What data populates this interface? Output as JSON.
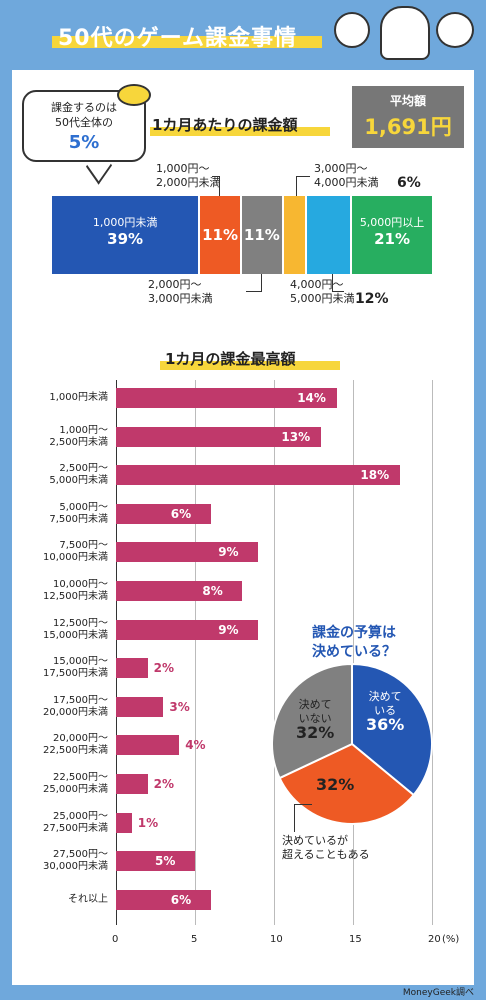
{
  "header": {
    "title": "50代のゲーム課金事情"
  },
  "bubble": {
    "text_line1": "課金するのは",
    "text_line2": "50代全体の",
    "percent": "5%"
  },
  "average": {
    "label": "平均額",
    "value": "1,691円"
  },
  "monthly_title": "1カ月あたりの課金額",
  "monthly_breakdown": [
    {
      "label": "1,000円未満",
      "percent": "39%",
      "value": 39,
      "color": "#2457b3"
    },
    {
      "label": "1,000円～\n2,000円未満",
      "percent": "11%",
      "value": 11,
      "color": "#ee5a24"
    },
    {
      "label": "2,000円～\n3,000円未満",
      "percent": "11%",
      "value": 11,
      "color": "#808080"
    },
    {
      "label": "3,000円～\n4,000円未満",
      "percent": "6%",
      "value": 6,
      "color": "#f7b731"
    },
    {
      "label": "4,000円～\n5,000円未満",
      "percent": "12%",
      "value": 12,
      "color": "#26a9e0"
    },
    {
      "label": "5,000円以上",
      "percent": "21%",
      "value": 21,
      "color": "#27ae60"
    }
  ],
  "max_title": "1カ月の課金最高額",
  "chart_data": [
    {
      "type": "bar",
      "orientation": "horizontal",
      "categories": [
        "1,000円未満",
        "1,000円～\n2,500円未満",
        "2,500円～\n5,000円未満",
        "5,000円～\n7,500円未満",
        "7,500円～\n10,000円未満",
        "10,000円～\n12,500円未満",
        "12,500円～\n15,000円未満",
        "15,000円～\n17,500円未満",
        "17,500円～\n20,000円未満",
        "20,000円～\n22,500円未満",
        "22,500円～\n25,000円未満",
        "25,000円～\n27,500円未満",
        "27,500円～\n30,000円未満",
        "それ以上"
      ],
      "values": [
        14,
        13,
        18,
        6,
        9,
        8,
        9,
        2,
        3,
        4,
        2,
        1,
        5,
        6
      ],
      "value_labels": [
        "14%",
        "13%",
        "18%",
        "6%",
        "9%",
        "8%",
        "9%",
        "2%",
        "3%",
        "4%",
        "2%",
        "1%",
        "5%",
        "6%"
      ],
      "xlim": [
        0,
        20
      ],
      "xticks": [
        "0",
        "5",
        "10",
        "15",
        "20"
      ],
      "x_unit": "(%)",
      "bar_color": "#c0396b",
      "grid": true
    },
    {
      "type": "pie",
      "title": "課金の予算は\n決めている？",
      "slices": [
        {
          "label": "決めて\nいる",
          "value": 36,
          "percent": "36%",
          "color": "#2457b3"
        },
        {
          "label": "決めているが\n超えることもある",
          "value": 32,
          "percent": "32%",
          "color": "#ee5a24"
        },
        {
          "label": "決めて\nいない",
          "value": 32,
          "percent": "32%",
          "color": "#808080"
        }
      ]
    }
  ],
  "credit": "MoneyGeek調べ"
}
